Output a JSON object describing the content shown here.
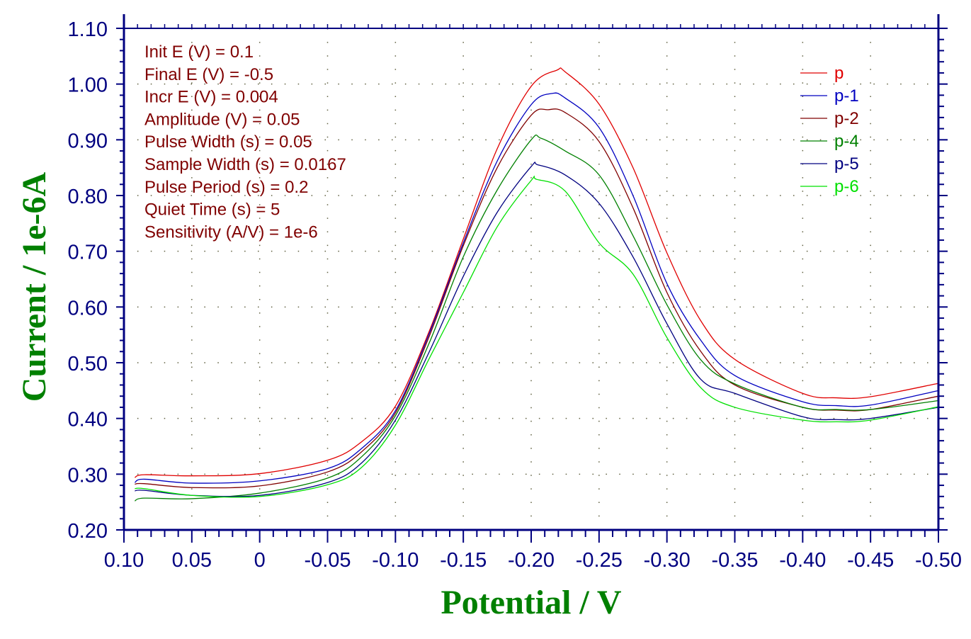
{
  "chart_data": {
    "type": "line",
    "xlabel": "Potential / V",
    "ylabel": "Current / 1e-6A",
    "xlim": [
      0.1,
      -0.5
    ],
    "ylim": [
      0.2,
      1.1
    ],
    "x_reversed": true,
    "x_ticks": [
      0.1,
      0.05,
      0,
      -0.05,
      -0.1,
      -0.15,
      -0.2,
      -0.25,
      -0.3,
      -0.35,
      -0.4,
      -0.45,
      -0.5
    ],
    "x_tick_labels": [
      "0.10",
      "0.05",
      "0",
      "-0.05",
      "-0.10",
      "-0.15",
      "-0.20",
      "-0.25",
      "-0.30",
      "-0.35",
      "-0.40",
      "-0.45",
      "-0.50"
    ],
    "y_ticks": [
      0.2,
      0.3,
      0.4,
      0.5,
      0.6,
      0.7,
      0.8,
      0.9,
      1.0,
      1.1
    ],
    "y_tick_labels": [
      "0.20",
      "0.30",
      "0.40",
      "0.50",
      "0.60",
      "0.70",
      "0.80",
      "0.90",
      "1.00",
      "1.10"
    ],
    "grid": "dotted",
    "legend_position": "top-right",
    "annotations": [
      "Init E (V) = 0.1",
      "Final E (V) = -0.5",
      "Incr E (V) = 0.004",
      "Amplitude (V) = 0.05",
      "Pulse Width (s) = 0.05",
      "Sample Width (s) = 0.0167",
      "Pulse Period (s) = 0.2",
      "Quiet Time (s) = 5",
      "Sensitivity (A/V) = 1e-6"
    ],
    "series": [
      {
        "name": "p",
        "color": "#e00000",
        "points": [
          [
            0.092,
            0.294
          ],
          [
            0.085,
            0.299
          ],
          [
            0.05,
            0.297
          ],
          [
            0,
            0.301
          ],
          [
            -0.05,
            0.325
          ],
          [
            -0.075,
            0.358
          ],
          [
            -0.1,
            0.422
          ],
          [
            -0.125,
            0.557
          ],
          [
            -0.15,
            0.722
          ],
          [
            -0.175,
            0.884
          ],
          [
            -0.2,
            0.996
          ],
          [
            -0.219,
            1.025
          ],
          [
            -0.225,
            1.022
          ],
          [
            -0.25,
            0.964
          ],
          [
            -0.275,
            0.85
          ],
          [
            -0.3,
            0.697
          ],
          [
            -0.325,
            0.575
          ],
          [
            -0.35,
            0.506
          ],
          [
            -0.4,
            0.445
          ],
          [
            -0.425,
            0.437
          ],
          [
            -0.45,
            0.439
          ],
          [
            -0.5,
            0.463
          ]
        ]
      },
      {
        "name": "p-1",
        "color": "#0000c0",
        "points": [
          [
            0.092,
            0.285
          ],
          [
            0.085,
            0.291
          ],
          [
            0.05,
            0.284
          ],
          [
            0,
            0.288
          ],
          [
            -0.05,
            0.31
          ],
          [
            -0.075,
            0.346
          ],
          [
            -0.1,
            0.414
          ],
          [
            -0.125,
            0.553
          ],
          [
            -0.15,
            0.715
          ],
          [
            -0.175,
            0.862
          ],
          [
            -0.2,
            0.963
          ],
          [
            -0.215,
            0.983
          ],
          [
            -0.225,
            0.975
          ],
          [
            -0.25,
            0.922
          ],
          [
            -0.275,
            0.8
          ],
          [
            -0.3,
            0.642
          ],
          [
            -0.325,
            0.54
          ],
          [
            -0.35,
            0.477
          ],
          [
            -0.4,
            0.43
          ],
          [
            -0.425,
            0.423
          ],
          [
            -0.45,
            0.424
          ],
          [
            -0.5,
            0.45
          ]
        ]
      },
      {
        "name": "p-2",
        "color": "#800000",
        "points": [
          [
            0.092,
            0.282
          ],
          [
            0.085,
            0.283
          ],
          [
            0.05,
            0.276
          ],
          [
            0,
            0.279
          ],
          [
            -0.05,
            0.304
          ],
          [
            -0.075,
            0.34
          ],
          [
            -0.1,
            0.41
          ],
          [
            -0.125,
            0.548
          ],
          [
            -0.15,
            0.71
          ],
          [
            -0.175,
            0.85
          ],
          [
            -0.2,
            0.944
          ],
          [
            -0.2125,
            0.954
          ],
          [
            -0.225,
            0.949
          ],
          [
            -0.25,
            0.897
          ],
          [
            -0.275,
            0.778
          ],
          [
            -0.3,
            0.626
          ],
          [
            -0.325,
            0.52
          ],
          [
            -0.35,
            0.46
          ],
          [
            -0.4,
            0.42
          ],
          [
            -0.425,
            0.415
          ],
          [
            -0.45,
            0.416
          ],
          [
            -0.5,
            0.44
          ]
        ]
      },
      {
        "name": "p-4",
        "color": "#008000",
        "points": [
          [
            0.092,
            0.252
          ],
          [
            0.085,
            0.257
          ],
          [
            0.05,
            0.256
          ],
          [
            0,
            0.266
          ],
          [
            -0.05,
            0.293
          ],
          [
            -0.075,
            0.331
          ],
          [
            -0.1,
            0.405
          ],
          [
            -0.125,
            0.536
          ],
          [
            -0.15,
            0.69
          ],
          [
            -0.175,
            0.81
          ],
          [
            -0.2,
            0.9
          ],
          [
            -0.207,
            0.903
          ],
          [
            -0.225,
            0.88
          ],
          [
            -0.25,
            0.837
          ],
          [
            -0.275,
            0.728
          ],
          [
            -0.3,
            0.604
          ],
          [
            -0.325,
            0.505
          ],
          [
            -0.35,
            0.462
          ],
          [
            -0.4,
            0.42
          ],
          [
            -0.425,
            0.416
          ],
          [
            -0.45,
            0.416
          ],
          [
            -0.5,
            0.432
          ]
        ]
      },
      {
        "name": "p-5",
        "color": "#000080",
        "points": [
          [
            0.092,
            0.27
          ],
          [
            0.085,
            0.271
          ],
          [
            0.05,
            0.262
          ],
          [
            0,
            0.262
          ],
          [
            -0.05,
            0.285
          ],
          [
            -0.075,
            0.32
          ],
          [
            -0.1,
            0.397
          ],
          [
            -0.125,
            0.52
          ],
          [
            -0.15,
            0.655
          ],
          [
            -0.175,
            0.77
          ],
          [
            -0.2,
            0.852
          ],
          [
            -0.205,
            0.855
          ],
          [
            -0.225,
            0.837
          ],
          [
            -0.25,
            0.786
          ],
          [
            -0.275,
            0.69
          ],
          [
            -0.3,
            0.57
          ],
          [
            -0.325,
            0.47
          ],
          [
            -0.35,
            0.445
          ],
          [
            -0.4,
            0.403
          ],
          [
            -0.425,
            0.398
          ],
          [
            -0.45,
            0.4
          ],
          [
            -0.5,
            0.42
          ]
        ]
      },
      {
        "name": "p-6",
        "color": "#00e000",
        "points": [
          [
            0.092,
            0.274
          ],
          [
            0.085,
            0.274
          ],
          [
            0.05,
            0.262
          ],
          [
            0,
            0.26
          ],
          [
            -0.05,
            0.281
          ],
          [
            -0.075,
            0.312
          ],
          [
            -0.1,
            0.388
          ],
          [
            -0.125,
            0.508
          ],
          [
            -0.15,
            0.626
          ],
          [
            -0.175,
            0.744
          ],
          [
            -0.2,
            0.827
          ],
          [
            -0.204,
            0.829
          ],
          [
            -0.225,
            0.808
          ],
          [
            -0.25,
            0.715
          ],
          [
            -0.275,
            0.659
          ],
          [
            -0.3,
            0.545
          ],
          [
            -0.325,
            0.455
          ],
          [
            -0.35,
            0.42
          ],
          [
            -0.4,
            0.397
          ],
          [
            -0.425,
            0.394
          ],
          [
            -0.45,
            0.397
          ],
          [
            -0.5,
            0.421
          ]
        ]
      }
    ]
  }
}
